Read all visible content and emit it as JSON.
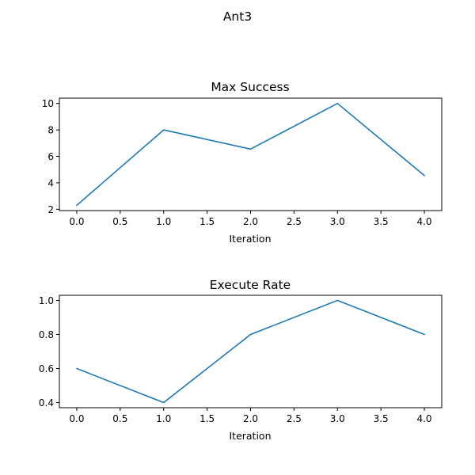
{
  "figure": {
    "title": "Ant3"
  },
  "chart_data": [
    {
      "type": "line",
      "title": "Max Success",
      "xlabel": "Iteration",
      "ylabel": "",
      "x": [
        0,
        1,
        2,
        3,
        4
      ],
      "series": [
        {
          "values": [
            2.3,
            8.0,
            6.55,
            10.0,
            4.55
          ],
          "color": "#1f77b4"
        }
      ],
      "xlim": [
        -0.2,
        4.2
      ],
      "ylim": [
        1.9,
        10.4
      ],
      "xticks": [
        0.0,
        0.5,
        1.0,
        1.5,
        2.0,
        2.5,
        3.0,
        3.5,
        4.0
      ],
      "xtick_labels": [
        "0.0",
        "0.5",
        "1.0",
        "1.5",
        "2.0",
        "2.5",
        "3.0",
        "3.5",
        "4.0"
      ],
      "yticks": [
        2,
        4,
        6,
        8,
        10
      ],
      "ytick_labels": [
        "2",
        "4",
        "6",
        "8",
        "10"
      ],
      "grid": false
    },
    {
      "type": "line",
      "title": "Execute Rate",
      "xlabel": "Iteration",
      "ylabel": "",
      "x": [
        0,
        1,
        2,
        3,
        4
      ],
      "series": [
        {
          "values": [
            0.6,
            0.4,
            0.8,
            1.0,
            0.8
          ],
          "color": "#1f77b4"
        }
      ],
      "xlim": [
        -0.2,
        4.2
      ],
      "ylim": [
        0.37,
        1.03
      ],
      "xticks": [
        0.0,
        0.5,
        1.0,
        1.5,
        2.0,
        2.5,
        3.0,
        3.5,
        4.0
      ],
      "xtick_labels": [
        "0.0",
        "0.5",
        "1.0",
        "1.5",
        "2.0",
        "2.5",
        "3.0",
        "3.5",
        "4.0"
      ],
      "yticks": [
        0.4,
        0.6,
        0.8,
        1.0
      ],
      "ytick_labels": [
        "0.4",
        "0.6",
        "0.8",
        "1.0"
      ],
      "grid": false
    }
  ]
}
